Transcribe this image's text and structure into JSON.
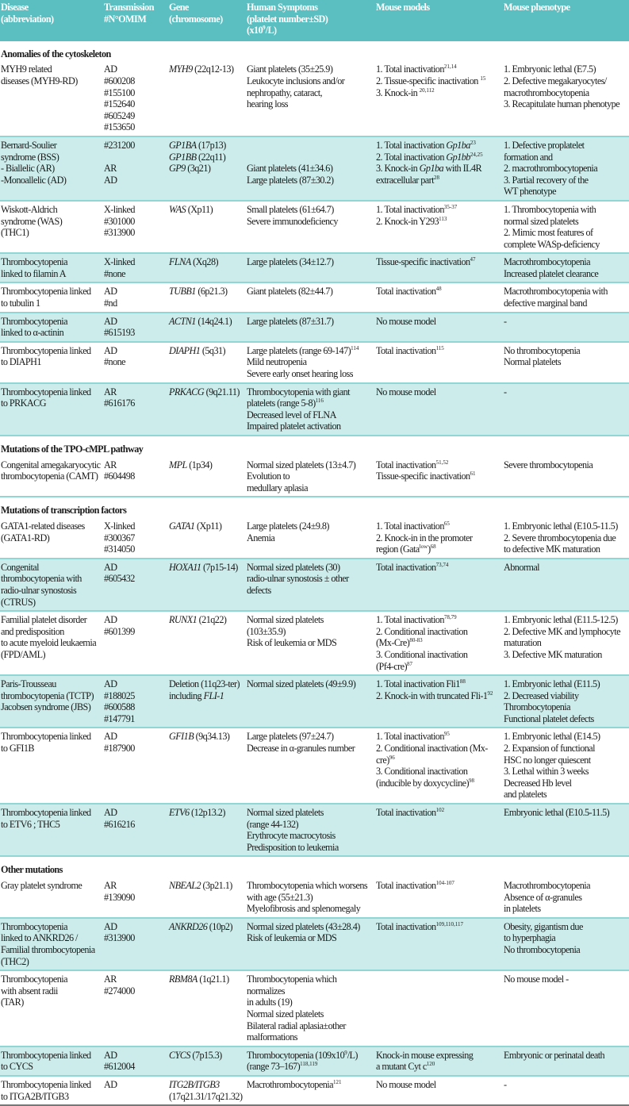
{
  "table": {
    "header": [
      [
        "Disease",
        "(abbreviation)"
      ],
      [
        "Transmission",
        "#N°OMIM"
      ],
      [
        "Gene",
        "(chromosome)"
      ],
      [
        "Human Symptoms",
        "(platelet number±SD)",
        [
          "(x10",
          {
            "sup": "9"
          },
          "/L)"
        ]
      ],
      [
        "Mouse models"
      ],
      [
        "Mouse phenotype"
      ]
    ],
    "colors": {
      "header": "#5bbec0",
      "shaded_row": "#cbecea",
      "divider": "#8fd6d5"
    },
    "rows": [
      {
        "section": "Anomalies of the cytoskeleton"
      },
      {
        "shaded": false,
        "cells": [
          [
            "MYH9 related",
            "diseases (MYH9-RD)"
          ],
          [
            "AD",
            "#600208",
            "#155100",
            "#152640",
            "#605249",
            "#153650"
          ],
          [
            [
              {
                "i": "MYH9"
              },
              " (22q12-13)"
            ]
          ],
          [
            "Giant platelets (35±25.9)",
            "Leukocyte inclusions and/or",
            "nephropathy, cataract,",
            "hearing loss"
          ],
          [
            [
              "1. Total inactivation",
              {
                "sup": "21,14"
              }
            ],
            [
              "2. Tissue-specific inactivation ",
              {
                "sup": "15"
              }
            ],
            [
              "3. Knock-in ",
              {
                "sup": "20,112"
              }
            ]
          ],
          [
            "1. Embryonic lethal (E7.5)",
            "2. Defective megakaryocytes/",
            "macrothrombocytopenia",
            "3. Recapitulate human phenotype"
          ]
        ]
      },
      {
        "shaded": true,
        "cells": [
          [
            "Bernard-Soulier",
            "syndrome (BSS)",
            "- Biallelic (AR)",
            "-Monoallelic (AD)"
          ],
          [
            "#231200",
            "",
            "AR",
            "AD"
          ],
          [
            [
              {
                "i": "GP1BA"
              },
              " (17p13)"
            ],
            [
              {
                "i": "GP1BB"
              },
              " (22q11)"
            ],
            [
              {
                "i": "GP9"
              },
              " (3q21)"
            ]
          ],
          [
            "",
            "",
            "Giant platelets (41±34.6)",
            "Large platelets  (87±30.2)"
          ],
          [
            [
              "1. Total inactivation ",
              {
                "i": "Gp1ba"
              },
              {
                "sup": "23"
              }
            ],
            [
              "2. Total inactivation ",
              {
                "i": "Gp1bb"
              },
              {
                "sup": "24,25"
              }
            ],
            [
              "3. Knock-in ",
              {
                "i": "Gp1ba"
              },
              " with IL4R"
            ],
            [
              "extracellular part",
              {
                "sup": "28"
              }
            ]
          ],
          [
            "1. Defective proplatelet",
            "formation and",
            "2. macrothrombocytopenia",
            "3. Partial recovery of the",
            "WT phenotype"
          ]
        ]
      },
      {
        "shaded": false,
        "cells": [
          [
            "Wiskott-Aldrich",
            "syndrome (WAS)",
            "(THC1)"
          ],
          [
            "X-linked",
            "#301000",
            "#313900"
          ],
          [
            [
              {
                "i": "WAS"
              },
              " (Xp11)"
            ]
          ],
          [
            "Small platelets (61±64.7)",
            "Severe immunodeficiency"
          ],
          [
            [
              "1. Total inactivation",
              {
                "sup": "35-37"
              }
            ],
            [
              "2. Knock-in Y293",
              {
                "sup": "113"
              }
            ]
          ],
          [
            "1. Thrombocytopenia with",
            "normal sized platelets",
            "2. Mimic most features of",
            "complete WASp-deficiency"
          ]
        ]
      },
      {
        "shaded": true,
        "cells": [
          [
            "Thrombocytopenia",
            "linked to filamin A"
          ],
          [
            "X-linked",
            "#none"
          ],
          [
            [
              {
                "i": "FLNA"
              },
              " (Xq28)"
            ]
          ],
          [
            "Large platelets (34±12.7)"
          ],
          [
            [
              "Tissue-specific inactivation",
              {
                "sup": "47"
              }
            ]
          ],
          [
            "Macrothrombocytopenia",
            "Increased platelet clearance"
          ]
        ]
      },
      {
        "shaded": false,
        "cells": [
          [
            "Thrombocytopenia linked",
            "to tubulin  1"
          ],
          [
            "AD",
            "#nd"
          ],
          [
            [
              {
                "i": "TUBB1"
              },
              " (6p21.3)"
            ]
          ],
          [
            "Giant platelets (82±44.7)"
          ],
          [
            [
              "Total inactivation",
              {
                "sup": "48"
              }
            ]
          ],
          [
            "Macrothrombocytopenia with",
            "defective marginal band"
          ]
        ]
      },
      {
        "shaded": true,
        "cells": [
          [
            "Thrombocytopenia",
            "linked to α-actinin"
          ],
          [
            "AD",
            "#615193"
          ],
          [
            [
              {
                "i": "ACTN1"
              },
              " (14q24.1)"
            ]
          ],
          [
            "Large platelets (87±31.7)"
          ],
          [
            "No mouse model"
          ],
          [
            "-"
          ]
        ]
      },
      {
        "shaded": false,
        "cells": [
          [
            "Thrombocytopenia linked",
            "to DIAPH1"
          ],
          [
            "AD",
            "#none"
          ],
          [
            [
              {
                "i": "DIAPH1"
              },
              " (5q31)"
            ]
          ],
          [
            [
              "Large platelets (range 69-147)",
              {
                "sup": "114"
              }
            ],
            "Mild neutropenia",
            "Severe early onset hearing loss"
          ],
          [
            [
              "Total inactivation",
              {
                "sup": "115"
              }
            ]
          ],
          [
            "No thrombocytopenia",
            "Normal platelets"
          ]
        ]
      },
      {
        "shaded": true,
        "cells": [
          [
            "Thrombocytopenia linked",
            "to PRKACG"
          ],
          [
            "AR",
            "#616176"
          ],
          [
            [
              {
                "i": "PRKACG"
              },
              " (9q21.11)"
            ]
          ],
          [
            "Thrombocytopenia with giant",
            [
              "platelets (range 5-8)",
              {
                "sup": "116"
              }
            ],
            "Decreased level of FLNA",
            "Impaired platelet activation"
          ],
          [
            "No mouse model"
          ],
          [
            "-"
          ]
        ]
      },
      {
        "section": "Mutations of the  TPO-cMPL pathway"
      },
      {
        "shaded": false,
        "cells": [
          [
            "Congenital amegakaryocytic",
            "thrombocytopenia (CAMT)"
          ],
          [
            "AR",
            "#604498"
          ],
          [
            [
              {
                "i": "MPL"
              },
              " (1p34)"
            ]
          ],
          [
            "Normal sized platelets (13±4.7)",
            "Evolution to",
            "medullary aplasia"
          ],
          [
            [
              "Total inactivation",
              {
                "sup": "51,52"
              }
            ],
            [
              "Tissue-specific inactivation",
              {
                "sup": "61"
              }
            ]
          ],
          [
            "Severe thrombocytopenia"
          ]
        ]
      },
      {
        "section": "Mutations of  transcription factors"
      },
      {
        "shaded": false,
        "cells": [
          [
            "GATA1-related diseases",
            "(GATA1-RD)"
          ],
          [
            "X-linked",
            "#300367",
            "#314050"
          ],
          [
            [
              {
                "i": "GATA1"
              },
              " (Xp11)"
            ]
          ],
          [
            "Large platelets (24±9.8)",
            "Anemia"
          ],
          [
            [
              "1. Total inactivation",
              {
                "sup": "65"
              }
            ],
            "2. Knock-in in the promoter",
            [
              "region (Gata",
              {
                "sup": "low"
              },
              ")",
              {
                "sup": "68"
              }
            ]
          ],
          [
            "1. Embryonic lethal (E10.5-11.5)",
            "2. Severe thrombocytopenia due",
            "to defective MK maturation"
          ]
        ]
      },
      {
        "shaded": true,
        "cells": [
          [
            "Congenital",
            "thrombocytopenia with",
            "radio-ulnar synostosis (CTRUS)"
          ],
          [
            "AD",
            "#605432"
          ],
          [
            [
              {
                "i": "HOXA11"
              },
              " (7p15-14)"
            ]
          ],
          [
            "Normal sized platelets (30)",
            "radio-ulnar synostosis ± other",
            "defects"
          ],
          [
            [
              "Total inactivation",
              {
                "sup": "73,74"
              }
            ]
          ],
          [
            "Abnormal"
          ]
        ]
      },
      {
        "shaded": false,
        "cells": [
          [
            "Familial platelet disorder",
            "and predisposition",
            "to acute myeloid leukaemia",
            "(FPD/AML)"
          ],
          [
            "AD",
            "#601399"
          ],
          [
            [
              {
                "i": "RUNX1"
              },
              " (21q22)"
            ]
          ],
          [
            "Normal sized platelets",
            "(103±35.9)",
            "Risk of leukemia or MDS"
          ],
          [
            [
              "1. Total inactivation",
              {
                "sup": "78,79"
              }
            ],
            "2. Conditional inactivation",
            [
              "(Mx-Cre)",
              {
                "sup": "80-83"
              }
            ],
            "3. Conditional inactivation",
            [
              "(Pf4-cre)",
              {
                "sup": "87"
              }
            ]
          ],
          [
            "1. Embryonic lethal (E11.5-12.5)",
            "2. Defective MK and lymphocyte",
            "maturation",
            "3. Defective MK maturation"
          ]
        ]
      },
      {
        "shaded": true,
        "cells": [
          [
            "Paris-Trousseau",
            "thrombocytopenia (TCTP)",
            "Jacobsen syndrome (JBS)"
          ],
          [
            "AD",
            "#188025",
            "#600588",
            "#147791"
          ],
          [
            "Deletion (11q23-ter)",
            [
              "including ",
              {
                "i": "FLI-1"
              }
            ]
          ],
          [
            "Normal sized platelets (49±9.9)"
          ],
          [
            [
              "1. Total inactivation Fli1",
              {
                "sup": "88"
              }
            ],
            [
              "2. Knock-in with truncated Fli-1",
              {
                "sup": "92"
              }
            ]
          ],
          [
            "1. Embryonic lethal (E11.5)",
            "2. Decreased viability",
            "Thrombocytopenia",
            "Functional platelet defects"
          ]
        ]
      },
      {
        "shaded": false,
        "cells": [
          [
            "Thrombocytopenia linked",
            "to GFI1B"
          ],
          [
            "AD",
            "#187900"
          ],
          [
            [
              {
                "i": "GFI1B"
              },
              " (9q34.13)"
            ]
          ],
          [
            "Large platelets (97±24.7)",
            "Decrease in α-granules number"
          ],
          [
            [
              "1. Total inactivation",
              {
                "sup": "95"
              }
            ],
            [
              "2. Conditional inactivation (Mx-cre)",
              {
                "sup": "96"
              }
            ],
            "3. Conditional inactivation",
            [
              "(inducible by doxycycline)",
              {
                "sup": "98"
              }
            ]
          ],
          [
            "1. Embryonic lethal (E14.5)",
            "2. Expansion of functional",
            "HSC no longer quiescent",
            "3. Lethal within 3 weeks",
            "Decreased Hb level",
            "and platelets"
          ]
        ]
      },
      {
        "shaded": true,
        "cells": [
          [
            "Thrombocytopenia linked",
            "to ETV6 ; THC5"
          ],
          [
            "AD",
            "#616216"
          ],
          [
            [
              {
                "i": "ETV6"
              },
              " (12p13.2)"
            ]
          ],
          [
            "Normal sized platelets",
            "(range 44-132)",
            "Erythrocyte macrocytosis",
            "Predisposition to leukemia"
          ],
          [
            [
              "Total inactivation",
              {
                "sup": "102"
              }
            ]
          ],
          [
            "Embryonic lethal (E10.5-11.5)"
          ]
        ]
      },
      {
        "section": "Other mutations"
      },
      {
        "shaded": false,
        "cells": [
          [
            "Gray platelet syndrome"
          ],
          [
            "AR",
            "#139090"
          ],
          [
            [
              {
                "i": "NBEAL2"
              },
              " (3p21.1)"
            ]
          ],
          [
            "Thrombocytopenia which worsens",
            "with age (55±21.3)",
            "Myelofibrosis and splenomegaly"
          ],
          [
            [
              "Total inactivation",
              {
                "sup": "104-107"
              }
            ]
          ],
          [
            "Macrothrombocytopenia",
            "Absence of α-granules",
            "in platelets"
          ]
        ]
      },
      {
        "shaded": true,
        "cells": [
          [
            "Thrombocytopenia",
            "linked to ANKRD26 /",
            "Familial thrombocytopenia",
            "(THC2)"
          ],
          [
            "AD",
            "#313900"
          ],
          [
            [
              {
                "i": "ANKRD26"
              },
              " (10p2)"
            ]
          ],
          [
            "Normal sized platelets (43±28.4)",
            "Risk of leukemia or MDS"
          ],
          [
            [
              "Total inactivation",
              {
                "sup": "109,110,117"
              }
            ]
          ],
          [
            "Obesity, gigantism due",
            "to hyperphagia",
            "No thrombocytopenia"
          ]
        ]
      },
      {
        "shaded": false,
        "cells": [
          [
            "Thrombocytopenia",
            "with absent radii",
            "(TAR)"
          ],
          [
            "AR",
            "#274000"
          ],
          [
            [
              {
                "i": "RBM8A"
              },
              " (1q21.1)"
            ]
          ],
          [
            "Thrombocytopenia which normalizes",
            "in adults (19)",
            "Normal sized platelets",
            "Bilateral radial aplasia±other",
            "malformations"
          ],
          [
            ""
          ],
          [
            "No mouse model          -"
          ]
        ]
      },
      {
        "shaded": true,
        "cells": [
          [
            "Thrombocytopenia linked",
            "to CYCS"
          ],
          [
            "AD",
            "#612004"
          ],
          [
            [
              {
                "i": "CYCS"
              },
              " (7p15.3)"
            ]
          ],
          [
            [
              "Thrombocytopenia (109x10",
              {
                "sup": "9"
              },
              "/L)"
            ],
            [
              "(range 73–167)",
              {
                "sup": "118,119"
              }
            ]
          ],
          [
            "Knock-in mouse expressing",
            [
              "a mutant Cyt c",
              {
                "sup": "120"
              }
            ]
          ],
          [
            "Embryonic or perinatal death"
          ]
        ]
      },
      {
        "shaded": false,
        "last": true,
        "cells": [
          [
            "Thrombocytopenia linked",
            "to ITGA2B/ITGB3"
          ],
          [
            "AD"
          ],
          [
            [
              {
                "i": "ITG2B/ITGB3"
              }
            ],
            "(17q21.31/17q21.32)"
          ],
          [
            [
              "Macrothrombocytopenia",
              {
                "sup": "121"
              }
            ]
          ],
          [
            "No mouse model"
          ],
          [
            "-"
          ]
        ]
      }
    ]
  }
}
